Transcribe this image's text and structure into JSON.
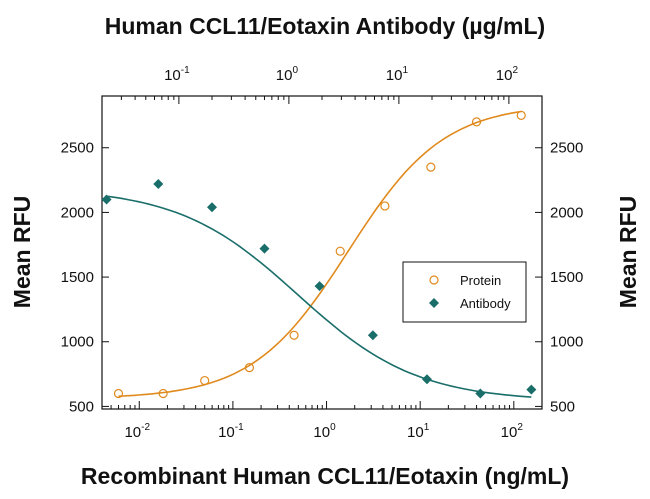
{
  "chart_data": {
    "type": "scatter",
    "title": "Human CCL11/Eotaxin Antibody (µg/mL)",
    "xlabel": "Recombinant Human CCL11/Eotaxin (ng/mL)",
    "ylabel_left": "Mean RFU",
    "ylabel_right": "Mean RFU",
    "x_scale": "log",
    "x_top_scale": "log",
    "x_range": [
      0.004,
      200
    ],
    "x_top_range": [
      0.02,
      200
    ],
    "x_ticks": [
      {
        "base": "10",
        "exp": "-2",
        "value": 0.01
      },
      {
        "base": "10",
        "exp": "-1",
        "value": 0.1
      },
      {
        "base": "10",
        "exp": "0",
        "value": 1
      },
      {
        "base": "10",
        "exp": "1",
        "value": 10
      },
      {
        "base": "10",
        "exp": "2",
        "value": 100
      }
    ],
    "x_top_ticks": [
      {
        "base": "10",
        "exp": "-1",
        "value": 0.1
      },
      {
        "base": "10",
        "exp": "0",
        "value": 1
      },
      {
        "base": "10",
        "exp": "1",
        "value": 10
      },
      {
        "base": "10",
        "exp": "2",
        "value": 100
      }
    ],
    "y_range": [
      480,
      2900
    ],
    "y_ticks": [
      "500",
      "1000",
      "1500",
      "2000",
      "2500"
    ],
    "legend": "right-middle",
    "series": [
      {
        "name": "Protein",
        "axis": "bottom",
        "marker": "open-circle",
        "color": "#e08a1e",
        "points": [
          [
            0.006,
            600
          ],
          [
            0.018,
            600
          ],
          [
            0.05,
            700
          ],
          [
            0.15,
            800
          ],
          [
            0.45,
            1050
          ],
          [
            1.4,
            1700
          ],
          [
            4.2,
            2050
          ],
          [
            13,
            2350
          ],
          [
            40,
            2700
          ],
          [
            120,
            2750
          ]
        ]
      },
      {
        "name": "Antibody",
        "axis": "top",
        "marker": "filled-diamond",
        "color": "#1a6e6a",
        "points": [
          [
            0.022,
            2100
          ],
          [
            0.065,
            2220
          ],
          [
            0.2,
            2040
          ],
          [
            0.6,
            1720
          ],
          [
            1.9,
            1430
          ],
          [
            5.8,
            1050
          ],
          [
            18,
            710
          ],
          [
            55,
            600
          ],
          [
            160,
            630
          ]
        ]
      }
    ]
  }
}
